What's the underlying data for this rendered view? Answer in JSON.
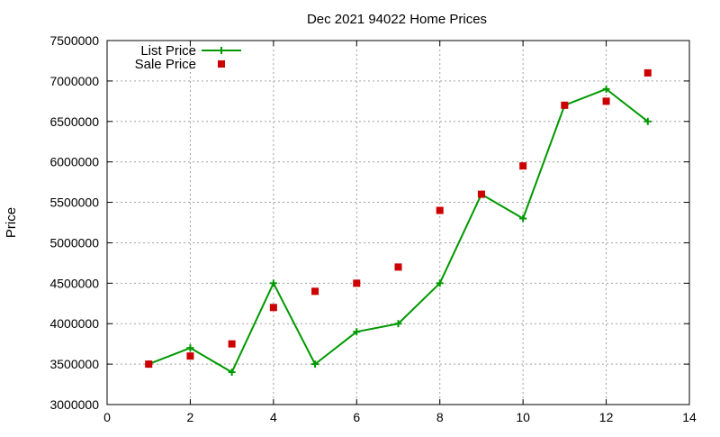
{
  "chart_data": {
    "type": "line",
    "title": "Dec 2021 94022 Home Prices",
    "xlabel": "",
    "ylabel": "Price",
    "xlim": [
      0,
      14
    ],
    "ylim": [
      3000000,
      7500000
    ],
    "xticks": [
      0,
      2,
      4,
      6,
      8,
      10,
      12,
      14
    ],
    "yticks": [
      3000000,
      3500000,
      4000000,
      4500000,
      5000000,
      5500000,
      6000000,
      6500000,
      7000000,
      7500000
    ],
    "grid": true,
    "legend_position": "top-left",
    "series": [
      {
        "name": "List Price",
        "style": "line-with-plus-markers",
        "color": "#009900",
        "x": [
          1,
          2,
          3,
          4,
          5,
          6,
          7,
          8,
          9,
          10,
          11,
          12,
          13
        ],
        "y": [
          3500000,
          3700000,
          3400000,
          4500000,
          3500000,
          3900000,
          4000000,
          4500000,
          5600000,
          5300000,
          6700000,
          6900000,
          6500000
        ]
      },
      {
        "name": "Sale Price",
        "style": "square-markers",
        "color": "#cc0000",
        "x": [
          1,
          2,
          3,
          4,
          5,
          6,
          7,
          8,
          9,
          10,
          11,
          12,
          13
        ],
        "y": [
          3500000,
          3600000,
          3750000,
          4200000,
          4400000,
          4500000,
          4700000,
          5400000,
          5600000,
          5950000,
          6700000,
          6750000,
          7100000
        ]
      }
    ]
  }
}
